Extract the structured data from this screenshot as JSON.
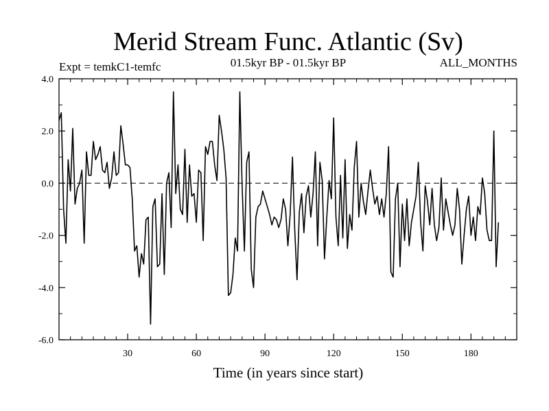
{
  "chart_data": {
    "type": "line",
    "title": "Merid Stream Func. Atlantic (Sv)",
    "subtitle_left": "Expt = temkC1-temfc",
    "subtitle_center": "01.5kyr BP - 01.5kyr BP",
    "subtitle_right": "ALL_MONTHS",
    "xlabel": "Time (in years since start)",
    "ylabel": "",
    "xlim": [
      0,
      200
    ],
    "ylim": [
      -6,
      4
    ],
    "x_ticks": [
      30,
      60,
      90,
      120,
      150,
      180
    ],
    "x_tick_labels": [
      "30",
      "60",
      "90",
      "120",
      "150",
      "180"
    ],
    "y_ticks": [
      -6,
      -4,
      -2,
      0,
      2,
      4
    ],
    "y_tick_labels": [
      "-6.0",
      "-4.0",
      "-2.0",
      "0.0",
      "2.0",
      "4.0"
    ],
    "reference_line": {
      "y": 0,
      "style": "dashed"
    },
    "grid": false,
    "series": [
      {
        "name": "Merid Stream Func. Atlantic",
        "x_start": 0,
        "x_step": 1,
        "values": [
          2.4,
          2.7,
          -1.0,
          -2.3,
          0.9,
          -0.3,
          2.1,
          -0.8,
          -0.2,
          0.0,
          0.5,
          -2.3,
          1.2,
          0.3,
          0.3,
          1.6,
          0.9,
          1.1,
          1.4,
          0.5,
          0.4,
          0.8,
          -0.2,
          0.2,
          1.2,
          0.3,
          0.4,
          2.2,
          1.5,
          0.7,
          0.7,
          0.6,
          -0.6,
          -2.6,
          -2.4,
          -3.6,
          -2.7,
          -3.1,
          -1.4,
          -1.3,
          -5.4,
          -0.9,
          -0.6,
          -3.2,
          -3.1,
          -0.4,
          -3.5,
          0.0,
          0.4,
          -1.7,
          3.5,
          -0.4,
          0.7,
          -1.0,
          -1.2,
          1.3,
          -1.5,
          0.7,
          -0.5,
          -0.4,
          -1.5,
          0.5,
          0.4,
          -2.2,
          1.4,
          1.1,
          1.6,
          1.6,
          0.7,
          0.1,
          2.6,
          2.0,
          1.3,
          0.2,
          -4.3,
          -4.2,
          -3.5,
          -2.1,
          -2.6,
          3.5,
          -0.1,
          -2.6,
          0.8,
          1.2,
          -3.3,
          -4.0,
          -1.3,
          -0.9,
          -0.8,
          -0.3,
          -0.6,
          -0.9,
          -1.2,
          -1.6,
          -1.3,
          -1.4,
          -1.7,
          -1.4,
          -0.6,
          -1.0,
          -2.4,
          -1.2,
          1.0,
          -1.8,
          -3.7,
          -1.1,
          -0.4,
          -1.9,
          -0.5,
          -0.1,
          -1.3,
          -0.4,
          1.2,
          -2.4,
          0.8,
          0.1,
          -2.9,
          -1.3,
          0.1,
          -0.6,
          2.5,
          -1.3,
          -2.4,
          0.3,
          -2.1,
          0.9,
          -2.5,
          -1.2,
          -1.8,
          0.6,
          1.6,
          -1.3,
          0.0,
          -0.7,
          -1.2,
          -0.3,
          0.5,
          -0.2,
          -0.8,
          -0.5,
          -1.2,
          -0.6,
          -1.3,
          -0.4,
          1.4,
          -3.4,
          -3.6,
          -0.6,
          0.0,
          -3.2,
          -0.8,
          -2.2,
          -0.6,
          -2.4,
          -1.5,
          -1.0,
          -0.5,
          0.8,
          -1.5,
          -2.6,
          -0.1,
          -0.7,
          -1.6,
          -0.2,
          -1.6,
          -2.2,
          -1.7,
          0.2,
          -1.8,
          -0.6,
          -1.1,
          -1.6,
          -2.0,
          -1.6,
          -0.2,
          -1.0,
          -3.1,
          -2.0,
          -1.0,
          -0.5,
          -2.0,
          -1.3,
          -2.2,
          -0.9,
          -1.2,
          0.2,
          -0.4,
          -1.8,
          -2.2,
          -2.2,
          2.0,
          -3.2,
          -1.5
        ]
      }
    ]
  }
}
